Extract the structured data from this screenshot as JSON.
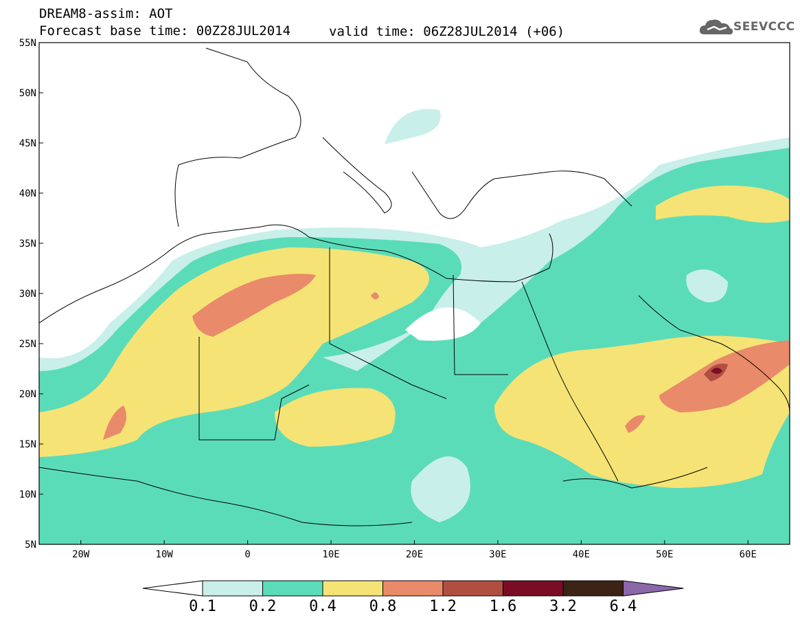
{
  "header": {
    "title_line1": "DREAM8-assim: AOT",
    "title_line2": "Forecast base time: 00Z28JUL2014",
    "valid_time": "valid time: 06Z28JUL2014 (+06)",
    "logo_text": "SEEVCCC"
  },
  "map": {
    "lat_labels": [
      "55N",
      "50N",
      "45N",
      "40N",
      "35N",
      "30N",
      "25N",
      "20N",
      "15N",
      "10N",
      "5N"
    ],
    "lon_labels": [
      "20W",
      "10W",
      "0",
      "10E",
      "20E",
      "30E",
      "40E",
      "50E",
      "60E"
    ],
    "extent": {
      "lon": [
        -25,
        65
      ],
      "lat": [
        5,
        55
      ]
    }
  },
  "legend": {
    "levels": [
      "0.1",
      "0.2",
      "0.4",
      "0.8",
      "1.2",
      "1.6",
      "3.2",
      "6.4"
    ],
    "colors": [
      "#c8efe9",
      "#5bdcb9",
      "#f5e375",
      "#e98a6a",
      "#b04f41",
      "#7a0d25",
      "#3b2416",
      "#8c68aa"
    ]
  }
}
